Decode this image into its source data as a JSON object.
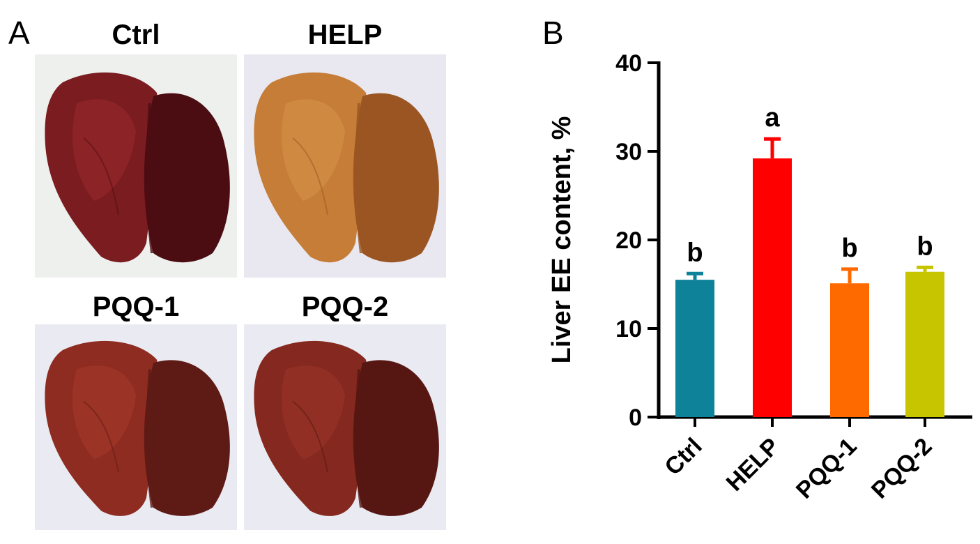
{
  "panel_a": {
    "letter": "A",
    "photos": [
      {
        "title": "Ctrl",
        "tone": "dark-red",
        "colors": {
          "bg": "#eef0ee",
          "base": "#7a1c20",
          "shade": "#4c0d12",
          "light": "#9a2a2e"
        }
      },
      {
        "title": "HELP",
        "tone": "tan",
        "colors": {
          "bg": "#e9e7f0",
          "base": "#c57d37",
          "shade": "#9a5522",
          "light": "#d79449"
        }
      },
      {
        "title": "PQQ-1",
        "tone": "red-brown",
        "colors": {
          "bg": "#eaeaf2",
          "base": "#8e2c21",
          "shade": "#5e1a14",
          "light": "#a53a2b"
        }
      },
      {
        "title": "PQQ-2",
        "tone": "red-brown",
        "colors": {
          "bg": "#eaeaf2",
          "base": "#85281f",
          "shade": "#561612",
          "light": "#9b3528"
        }
      }
    ]
  },
  "panel_b": {
    "letter": "B"
  },
  "chart_data": {
    "type": "bar",
    "title": "",
    "xlabel": "",
    "ylabel": "Liver EE content, %",
    "categories": [
      "Ctrl",
      "HELP",
      "PQQ-1",
      "PQQ-2"
    ],
    "values": [
      15.5,
      29.2,
      15.1,
      16.4
    ],
    "errors": [
      0.7,
      2.2,
      1.6,
      0.5
    ],
    "significance": [
      "b",
      "a",
      "b",
      "b"
    ],
    "colors": [
      "#0e8299",
      "#ff0000",
      "#ff6a00",
      "#c7c400"
    ],
    "ylim": [
      0,
      40
    ],
    "yticks": [
      0,
      10,
      20,
      30,
      40
    ],
    "grid": false
  }
}
